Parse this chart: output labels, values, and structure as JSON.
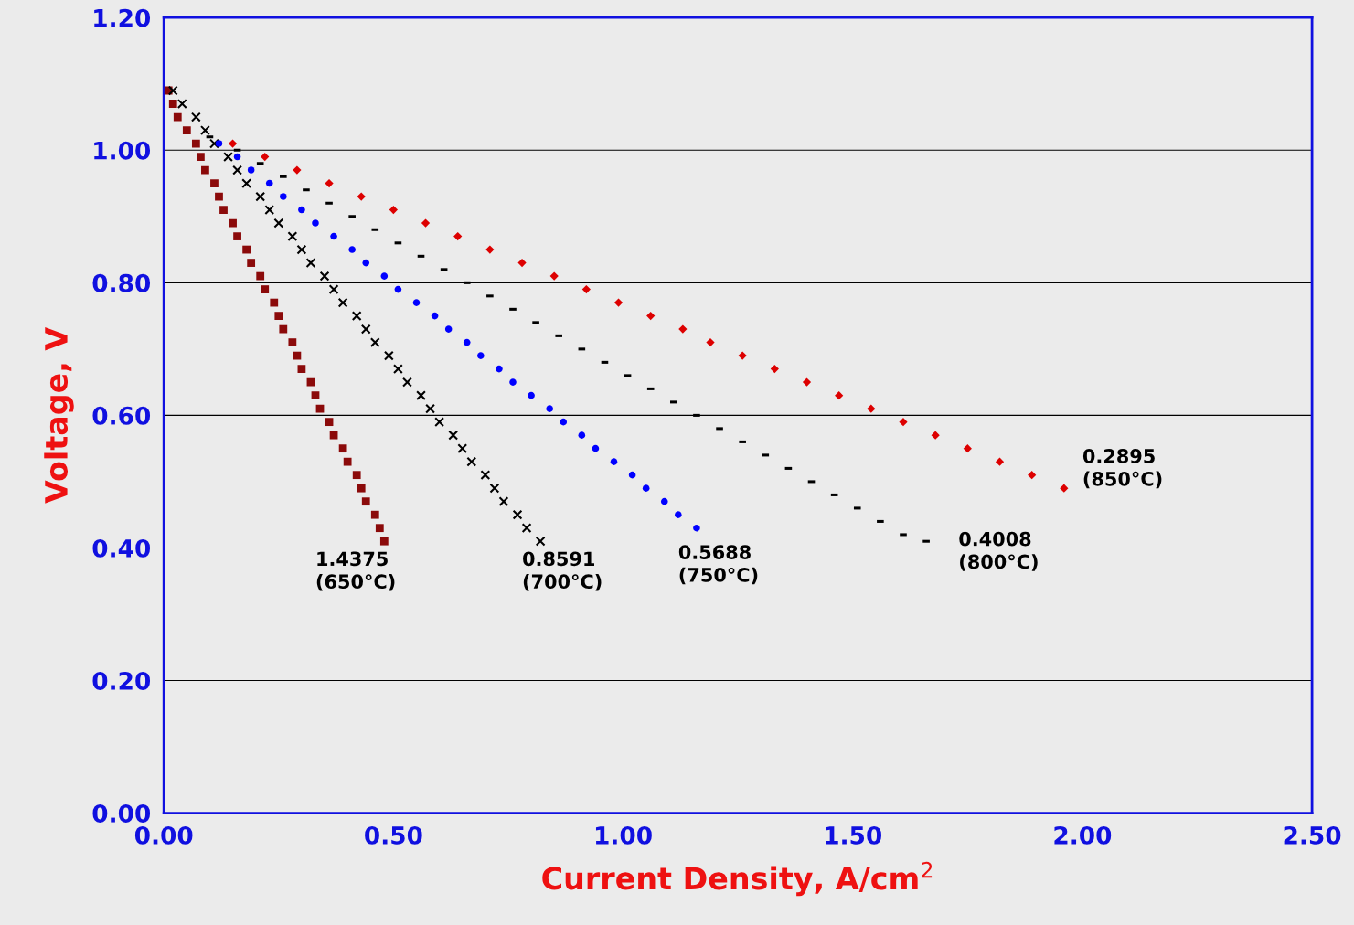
{
  "chart_data": {
    "type": "scatter",
    "xlabel": "Current Density, A/cm$^{2}$",
    "ylabel": "Voltage, V",
    "xlim": [
      0,
      2.5
    ],
    "ylim": [
      0,
      1.2
    ],
    "xticks": [
      {
        "value": 0,
        "label": "0.00"
      },
      {
        "value": 0.5,
        "label": "0.50"
      },
      {
        "value": 1.0,
        "label": "1.00"
      },
      {
        "value": 1.5,
        "label": "1.50"
      },
      {
        "value": 2.0,
        "label": "2.00"
      },
      {
        "value": 2.5,
        "label": "2.50"
      }
    ],
    "yticks": [
      {
        "value": 0,
        "label": "0.00"
      },
      {
        "value": 0.2,
        "label": "0.20"
      },
      {
        "value": 0.4,
        "label": "0.40"
      },
      {
        "value": 0.6,
        "label": "0.60"
      },
      {
        "value": 0.8,
        "label": "0.80"
      },
      {
        "value": 1.0,
        "label": "1.00"
      },
      {
        "value": 1.2,
        "label": "1.20"
      }
    ],
    "grid": "y",
    "legend": false,
    "series": [
      {
        "color": "#8b0a0a",
        "marker": "square",
        "x": [
          0.01,
          0.02,
          0.03,
          0.05,
          0.07,
          0.08,
          0.09,
          0.11,
          0.12,
          0.13,
          0.15,
          0.16,
          0.18,
          0.19,
          0.21,
          0.22,
          0.24,
          0.25,
          0.26,
          0.28,
          0.29,
          0.3,
          0.32,
          0.33,
          0.34,
          0.36,
          0.37,
          0.39,
          0.4,
          0.42,
          0.43,
          0.44,
          0.46,
          0.47,
          0.48
        ],
        "values": [
          1.09,
          1.07,
          1.05,
          1.03,
          1.01,
          0.99,
          0.97,
          0.95,
          0.93,
          0.91,
          0.89,
          0.87,
          0.85,
          0.83,
          0.81,
          0.79,
          0.77,
          0.75,
          0.73,
          0.71,
          0.69,
          0.67,
          0.65,
          0.63,
          0.61,
          0.59,
          0.57,
          0.55,
          0.53,
          0.51,
          0.49,
          0.47,
          0.45,
          0.43,
          0.41
        ]
      },
      {
        "color": "#000000",
        "marker": "cross",
        "x": [
          0.02,
          0.04,
          0.07,
          0.09,
          0.11,
          0.14,
          0.16,
          0.18,
          0.21,
          0.23,
          0.25,
          0.28,
          0.3,
          0.32,
          0.35,
          0.37,
          0.39,
          0.42,
          0.44,
          0.46,
          0.49,
          0.51,
          0.53,
          0.56,
          0.58,
          0.6,
          0.63,
          0.65,
          0.67,
          0.7,
          0.72,
          0.74,
          0.77,
          0.79,
          0.82
        ],
        "values": [
          1.09,
          1.07,
          1.05,
          1.03,
          1.01,
          0.99,
          0.97,
          0.95,
          0.93,
          0.91,
          0.89,
          0.87,
          0.85,
          0.83,
          0.81,
          0.79,
          0.77,
          0.75,
          0.73,
          0.71,
          0.69,
          0.67,
          0.65,
          0.63,
          0.61,
          0.59,
          0.57,
          0.55,
          0.53,
          0.51,
          0.49,
          0.47,
          0.45,
          0.43,
          0.41
        ]
      },
      {
        "color": "#0000ff",
        "marker": "circle",
        "x": [
          0.12,
          0.16,
          0.19,
          0.23,
          0.26,
          0.3,
          0.33,
          0.37,
          0.41,
          0.44,
          0.48,
          0.51,
          0.55,
          0.59,
          0.62,
          0.66,
          0.69,
          0.73,
          0.76,
          0.8,
          0.84,
          0.87,
          0.91,
          0.94,
          0.98,
          1.02,
          1.05,
          1.09,
          1.12,
          1.16
        ],
        "values": [
          1.01,
          0.99,
          0.97,
          0.95,
          0.93,
          0.91,
          0.89,
          0.87,
          0.85,
          0.83,
          0.81,
          0.79,
          0.77,
          0.75,
          0.73,
          0.71,
          0.69,
          0.67,
          0.65,
          0.63,
          0.61,
          0.59,
          0.57,
          0.55,
          0.53,
          0.51,
          0.49,
          0.47,
          0.45,
          0.43
        ]
      },
      {
        "color": "#000000",
        "x": [
          0.1,
          0.16,
          0.21,
          0.26,
          0.31,
          0.36,
          0.41,
          0.46,
          0.51,
          0.56,
          0.61,
          0.66,
          0.71,
          0.76,
          0.81,
          0.86,
          0.91,
          0.96,
          1.01,
          1.06,
          1.11,
          1.16,
          1.21,
          1.26,
          1.31,
          1.36,
          1.41,
          1.46,
          1.51,
          1.56,
          1.61,
          1.66
        ],
        "values": [
          1.02,
          1.0,
          0.98,
          0.96,
          0.94,
          0.92,
          0.9,
          0.88,
          0.86,
          0.84,
          0.82,
          0.8,
          0.78,
          0.76,
          0.74,
          0.72,
          0.7,
          0.68,
          0.66,
          0.64,
          0.62,
          0.6,
          0.58,
          0.56,
          0.54,
          0.52,
          0.5,
          0.48,
          0.46,
          0.44,
          0.42,
          0.41
        ]
      },
      {
        "color": "#dd0000",
        "marker": "diamond",
        "x": [
          0.15,
          0.22,
          0.29,
          0.36,
          0.43,
          0.5,
          0.57,
          0.64,
          0.71,
          0.78,
          0.85,
          0.92,
          0.99,
          1.06,
          1.13,
          1.19,
          1.26,
          1.33,
          1.4,
          1.47,
          1.54,
          1.61,
          1.68,
          1.75,
          1.82,
          1.89,
          1.96
        ],
        "values": [
          1.01,
          0.99,
          0.97,
          0.95,
          0.93,
          0.91,
          0.89,
          0.87,
          0.85,
          0.83,
          0.81,
          0.79,
          0.77,
          0.75,
          0.73,
          0.71,
          0.69,
          0.67,
          0.65,
          0.63,
          0.61,
          0.59,
          0.57,
          0.55,
          0.53,
          0.51,
          0.49
        ]
      }
    ],
    "annotations": [
      "1.4375\n(650°C)",
      "0.8591\n(700°C)",
      "0.5688\n(750°C)",
      "0.4008\n(800°C)",
      "0.2895\n(850°C)"
    ]
  }
}
